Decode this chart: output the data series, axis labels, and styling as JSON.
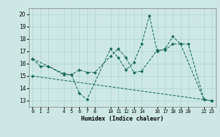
{
  "xlabel": "Humidex (Indice chaleur)",
  "background_color": "#cde8e4",
  "grid_color": "#b0d8d0",
  "line_color": "#1a6b5a",
  "ylim": [
    12.5,
    20.5
  ],
  "xlim": [
    -0.5,
    23.5
  ],
  "yticks": [
    13,
    14,
    15,
    16,
    17,
    18,
    19,
    20
  ],
  "xticks": [
    0,
    1,
    2,
    4,
    5,
    6,
    7,
    8,
    10,
    11,
    12,
    13,
    14,
    16,
    17,
    18,
    19,
    20,
    22,
    23
  ],
  "xtick_labels": [
    "0",
    "1",
    "2",
    "4",
    "5",
    "6",
    "7",
    "8",
    "10",
    "11",
    "12",
    "13",
    "14",
    "16",
    "17",
    "18",
    "19",
    "20",
    "22",
    "23"
  ],
  "series": [
    {
      "x": [
        0,
        1,
        2,
        4,
        5,
        6,
        7,
        10,
        11,
        12,
        13,
        14,
        15,
        16,
        17,
        18,
        19,
        22,
        23
      ],
      "y": [
        16.4,
        15.8,
        15.8,
        15.1,
        15.1,
        13.6,
        13.1,
        17.2,
        16.5,
        15.5,
        16.1,
        17.6,
        19.9,
        17.0,
        17.2,
        18.2,
        17.6,
        13.1,
        13.0
      ]
    },
    {
      "x": [
        0,
        2,
        4,
        5,
        6,
        7,
        8,
        10,
        11,
        12,
        13,
        14,
        16,
        17,
        18,
        19,
        20,
        22,
        23
      ],
      "y": [
        16.4,
        15.8,
        15.2,
        15.1,
        15.5,
        15.3,
        15.3,
        16.6,
        17.2,
        16.5,
        15.3,
        15.4,
        17.1,
        17.1,
        17.6,
        17.6,
        17.6,
        13.1,
        13.0
      ]
    },
    {
      "x": [
        0,
        23
      ],
      "y": [
        15.0,
        13.0
      ]
    }
  ]
}
